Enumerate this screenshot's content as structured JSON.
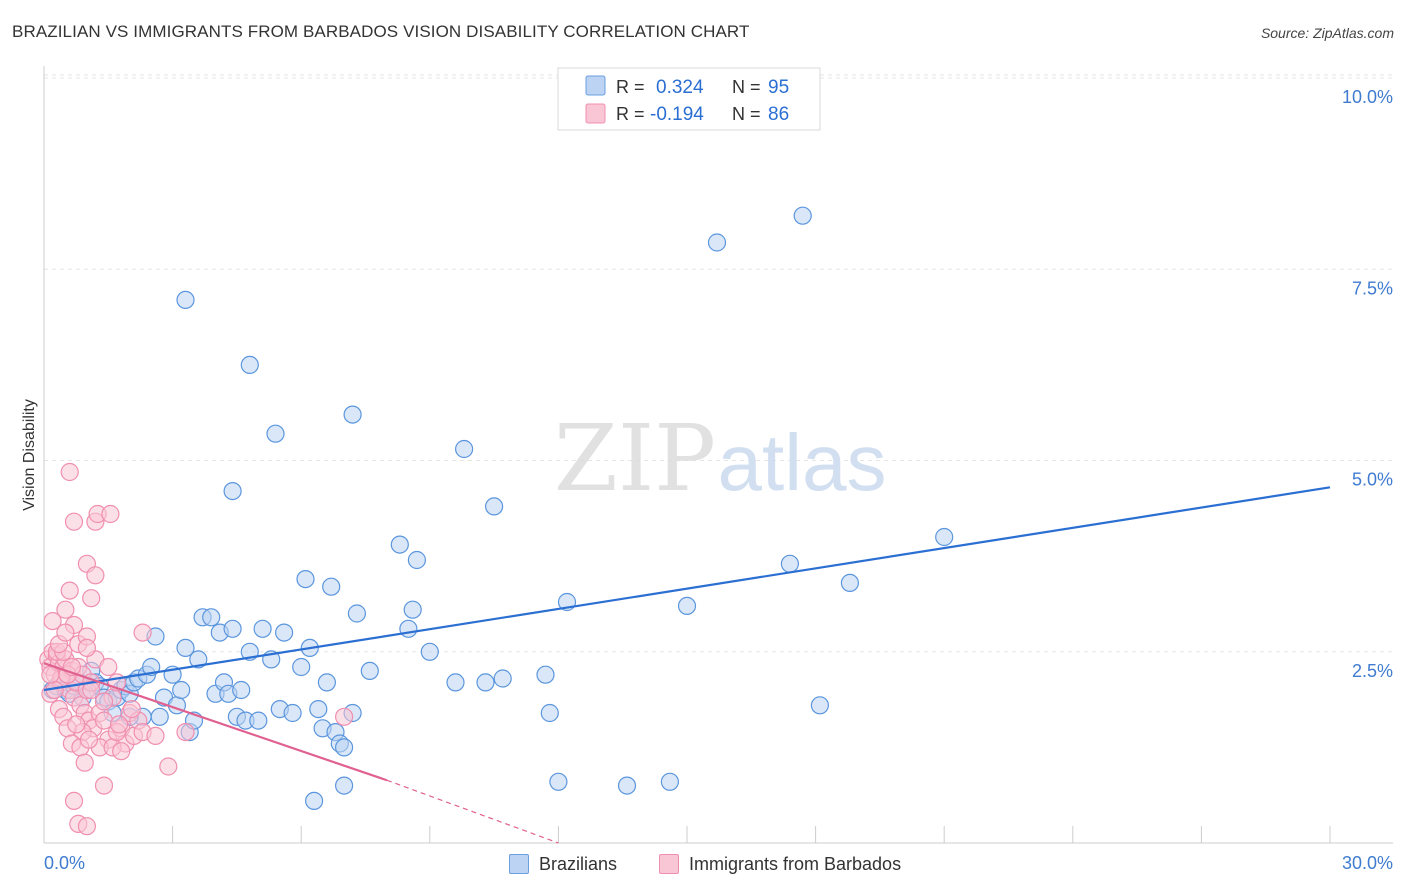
{
  "header": {
    "title": "BRAZILIAN VS IMMIGRANTS FROM BARBADOS VISION DISABILITY CORRELATION CHART",
    "source": "Source: ZipAtlas.com"
  },
  "watermark": {
    "part1": "ZIP",
    "part2": "atlas"
  },
  "stats_legend": [
    {
      "r_label": "R =",
      "r_value": "0.324",
      "n_label": "N =",
      "n_value": "95",
      "color": "#6a9fe0",
      "fill": "#bcd3f3"
    },
    {
      "r_label": "R =",
      "r_value": "-0.194",
      "n_label": "N =",
      "n_value": "86",
      "color": "#f08fb0",
      "fill": "#f9c6d6"
    }
  ],
  "chart_data": {
    "type": "scatter",
    "title": "BRAZILIAN VS IMMIGRANTS FROM BARBADOS VISION DISABILITY CORRELATION CHART",
    "xlabel": "",
    "ylabel": "Vision Disability",
    "xlim": [
      0,
      30
    ],
    "ylim": [
      0,
      10.0
    ],
    "x_tick_labels": [
      "0.0%",
      "30.0%"
    ],
    "y_tick_labels": [
      "2.5%",
      "5.0%",
      "7.5%",
      "10.0%"
    ],
    "y_ticks": [
      2.5,
      5.0,
      7.5,
      10.0
    ],
    "grid": true,
    "legend_position": "bottom",
    "series": [
      {
        "name": "Brazilians",
        "color": "#5b96dd",
        "fill": "#bcd3f3",
        "trend": {
          "x": [
            0.0,
            30.0
          ],
          "y": [
            2.0,
            4.65
          ],
          "color": "#2b6fd3"
        },
        "points": [
          [
            0.2,
            2.0
          ],
          [
            0.3,
            2.05
          ],
          [
            0.4,
            2.1
          ],
          [
            0.5,
            2.0
          ],
          [
            0.6,
            1.95
          ],
          [
            0.7,
            2.05
          ],
          [
            0.8,
            2.1
          ],
          [
            0.9,
            1.9
          ],
          [
            1.0,
            2.0
          ],
          [
            1.1,
            2.25
          ],
          [
            1.2,
            2.1
          ],
          [
            1.3,
            2.05
          ],
          [
            1.4,
            1.9
          ],
          [
            1.5,
            1.85
          ],
          [
            1.6,
            1.7
          ],
          [
            1.7,
            1.9
          ],
          [
            1.8,
            2.0
          ],
          [
            1.9,
            2.05
          ],
          [
            2.0,
            1.95
          ],
          [
            2.1,
            2.1
          ],
          [
            2.2,
            2.15
          ],
          [
            2.3,
            1.65
          ],
          [
            2.4,
            2.2
          ],
          [
            2.5,
            2.3
          ],
          [
            2.6,
            2.7
          ],
          [
            2.7,
            1.65
          ],
          [
            2.8,
            1.9
          ],
          [
            3.0,
            2.2
          ],
          [
            3.1,
            1.8
          ],
          [
            3.2,
            2.0
          ],
          [
            3.3,
            2.55
          ],
          [
            3.4,
            1.45
          ],
          [
            3.5,
            1.6
          ],
          [
            3.6,
            2.4
          ],
          [
            3.7,
            2.95
          ],
          [
            3.9,
            2.95
          ],
          [
            4.0,
            1.95
          ],
          [
            4.1,
            2.75
          ],
          [
            4.2,
            2.1
          ],
          [
            4.3,
            1.95
          ],
          [
            4.4,
            2.8
          ],
          [
            4.5,
            1.65
          ],
          [
            4.6,
            2.0
          ],
          [
            4.7,
            1.6
          ],
          [
            4.8,
            2.5
          ],
          [
            5.0,
            1.6
          ],
          [
            5.1,
            2.8
          ],
          [
            5.3,
            2.4
          ],
          [
            5.5,
            1.75
          ],
          [
            5.6,
            2.75
          ],
          [
            5.8,
            1.7
          ],
          [
            6.0,
            2.3
          ],
          [
            6.1,
            3.45
          ],
          [
            6.2,
            2.55
          ],
          [
            6.4,
            1.75
          ],
          [
            6.6,
            2.1
          ],
          [
            6.5,
            1.5
          ],
          [
            6.7,
            3.35
          ],
          [
            6.8,
            1.45
          ],
          [
            6.9,
            1.3
          ],
          [
            7.0,
            1.25
          ],
          [
            7.2,
            1.7
          ],
          [
            7.3,
            3.0
          ],
          [
            7.6,
            2.25
          ],
          [
            8.3,
            3.9
          ],
          [
            8.5,
            2.8
          ],
          [
            8.6,
            3.05
          ],
          [
            8.7,
            3.7
          ],
          [
            9.0,
            2.5
          ],
          [
            9.6,
            2.1
          ],
          [
            10.3,
            2.1
          ],
          [
            10.7,
            2.15
          ],
          [
            11.7,
            2.2
          ],
          [
            11.8,
            1.7
          ],
          [
            12.2,
            3.15
          ],
          [
            13.6,
            0.75
          ],
          [
            14.6,
            0.8
          ],
          [
            15.0,
            3.1
          ],
          [
            17.4,
            3.65
          ],
          [
            18.1,
            1.8
          ],
          [
            18.8,
            3.4
          ],
          [
            21.0,
            4.0
          ],
          [
            3.3,
            7.1
          ],
          [
            4.8,
            6.25
          ],
          [
            5.4,
            5.35
          ],
          [
            7.2,
            5.6
          ],
          [
            9.8,
            5.15
          ],
          [
            4.4,
            4.6
          ],
          [
            10.5,
            4.4
          ],
          [
            12.0,
            0.8
          ],
          [
            15.7,
            7.85
          ],
          [
            17.7,
            8.2
          ],
          [
            6.3,
            0.55
          ],
          [
            7.0,
            0.75
          ],
          [
            2.0,
            1.65
          ]
        ]
      },
      {
        "name": "Immigrants from Barbados",
        "color": "#f08fb0",
        "fill": "#f9c6d6",
        "trend": {
          "x": [
            0.0,
            8.0
          ],
          "y": [
            2.35,
            0.82
          ],
          "color": "#e0608f"
        },
        "trend_extension": {
          "x": [
            8.0,
            12.0
          ],
          "y": [
            0.82,
            0.0
          ]
        },
        "points": [
          [
            0.1,
            2.4
          ],
          [
            0.15,
            2.3
          ],
          [
            0.2,
            2.5
          ],
          [
            0.25,
            2.2
          ],
          [
            0.3,
            2.45
          ],
          [
            0.35,
            2.35
          ],
          [
            0.4,
            2.1
          ],
          [
            0.45,
            2.3
          ],
          [
            0.5,
            2.4
          ],
          [
            0.55,
            2.2
          ],
          [
            0.6,
            2.0
          ],
          [
            0.65,
            2.25
          ],
          [
            0.7,
            1.9
          ],
          [
            0.75,
            2.1
          ],
          [
            0.8,
            2.3
          ],
          [
            0.85,
            1.8
          ],
          [
            0.9,
            2.2
          ],
          [
            0.95,
            1.7
          ],
          [
            1.0,
            2.0
          ],
          [
            1.05,
            1.6
          ],
          [
            1.1,
            2.1
          ],
          [
            1.15,
            1.5
          ],
          [
            1.2,
            2.4
          ],
          [
            1.3,
            1.7
          ],
          [
            1.4,
            1.6
          ],
          [
            1.5,
            1.35
          ],
          [
            1.6,
            1.9
          ],
          [
            1.7,
            2.1
          ],
          [
            1.8,
            1.5
          ],
          [
            1.9,
            1.3
          ],
          [
            2.0,
            1.7
          ],
          [
            2.1,
            1.4
          ],
          [
            2.2,
            1.6
          ],
          [
            2.3,
            1.45
          ],
          [
            0.2,
            2.9
          ],
          [
            0.3,
            2.5
          ],
          [
            0.5,
            3.05
          ],
          [
            0.6,
            3.3
          ],
          [
            0.7,
            2.85
          ],
          [
            0.8,
            2.6
          ],
          [
            1.0,
            3.65
          ],
          [
            1.1,
            3.2
          ],
          [
            1.2,
            3.5
          ],
          [
            0.6,
            4.85
          ],
          [
            0.7,
            4.2
          ],
          [
            1.2,
            4.2
          ],
          [
            1.25,
            4.3
          ],
          [
            1.55,
            4.3
          ],
          [
            1.0,
            2.7
          ],
          [
            2.3,
            2.75
          ],
          [
            1.0,
            2.55
          ],
          [
            1.5,
            2.3
          ],
          [
            0.4,
            2.15
          ],
          [
            0.9,
            1.45
          ],
          [
            1.3,
            1.25
          ],
          [
            1.6,
            1.25
          ],
          [
            1.7,
            1.45
          ],
          [
            2.6,
            1.4
          ],
          [
            3.3,
            1.45
          ],
          [
            2.9,
            1.0
          ],
          [
            0.7,
            0.55
          ],
          [
            0.8,
            0.25
          ],
          [
            1.0,
            0.22
          ],
          [
            1.4,
            0.75
          ],
          [
            1.8,
            1.2
          ],
          [
            0.15,
            1.95
          ],
          [
            0.35,
            1.75
          ],
          [
            0.45,
            1.65
          ],
          [
            0.55,
            1.5
          ],
          [
            0.65,
            1.3
          ],
          [
            0.75,
            1.55
          ],
          [
            0.85,
            1.25
          ],
          [
            0.95,
            1.05
          ],
          [
            1.05,
            1.35
          ],
          [
            0.25,
            2.0
          ],
          [
            0.45,
            2.5
          ],
          [
            0.55,
            2.2
          ],
          [
            0.65,
            2.3
          ],
          [
            0.35,
            2.6
          ],
          [
            0.15,
            2.2
          ],
          [
            1.1,
            2.0
          ],
          [
            1.4,
            1.85
          ],
          [
            1.75,
            1.55
          ],
          [
            2.05,
            1.75
          ],
          [
            7.0,
            1.65
          ],
          [
            0.5,
            2.75
          ]
        ]
      }
    ]
  }
}
